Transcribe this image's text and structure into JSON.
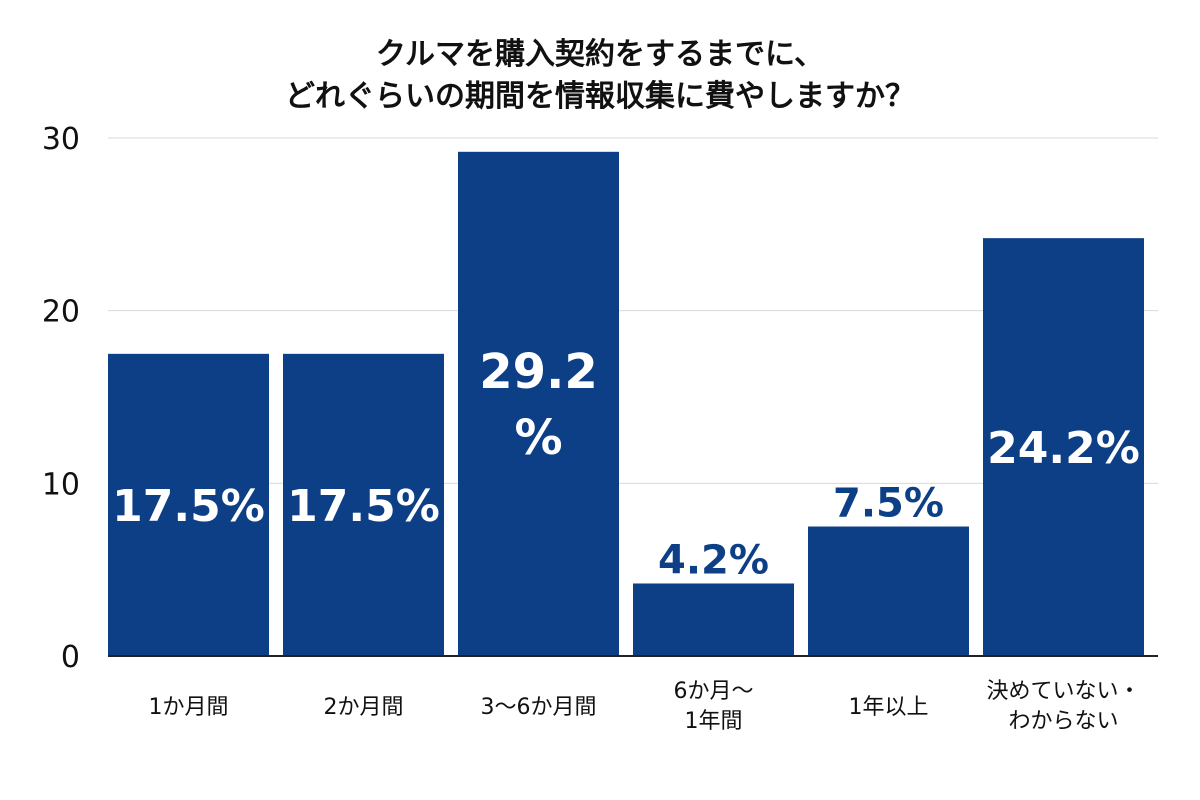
{
  "chart_data": {
    "type": "bar",
    "title_lines": [
      "クルマを購入契約をするまでに、",
      "どれぐらいの期間を情報収集に費やしますか？"
    ],
    "categories": [
      [
        "1か月間"
      ],
      [
        "2か月間"
      ],
      [
        "3〜6か月間"
      ],
      [
        "6か月〜",
        "1年間"
      ],
      [
        "1年以上"
      ],
      [
        "決めていない・",
        "わからない"
      ]
    ],
    "values": [
      17.5,
      17.5,
      29.2,
      4.2,
      7.5,
      24.2
    ],
    "data_labels": [
      [
        "17.5%"
      ],
      [
        "17.5%"
      ],
      [
        "29.2",
        "%"
      ],
      [
        "4.2%"
      ],
      [
        "7.5%"
      ],
      [
        "24.2%"
      ]
    ],
    "label_inside": [
      true,
      true,
      true,
      false,
      false,
      true
    ],
    "yticks": [
      "0",
      "10",
      "20",
      "30"
    ],
    "ytick_values": [
      0,
      10,
      20,
      30
    ],
    "ylim": [
      0,
      30
    ],
    "xlabel": "",
    "ylabel": "",
    "grid": true,
    "colors": {
      "bar": "#0d3f87",
      "grid": "#d9d9d9",
      "label_inside": "#ffffff",
      "label_outside": "#0d3f87"
    }
  }
}
